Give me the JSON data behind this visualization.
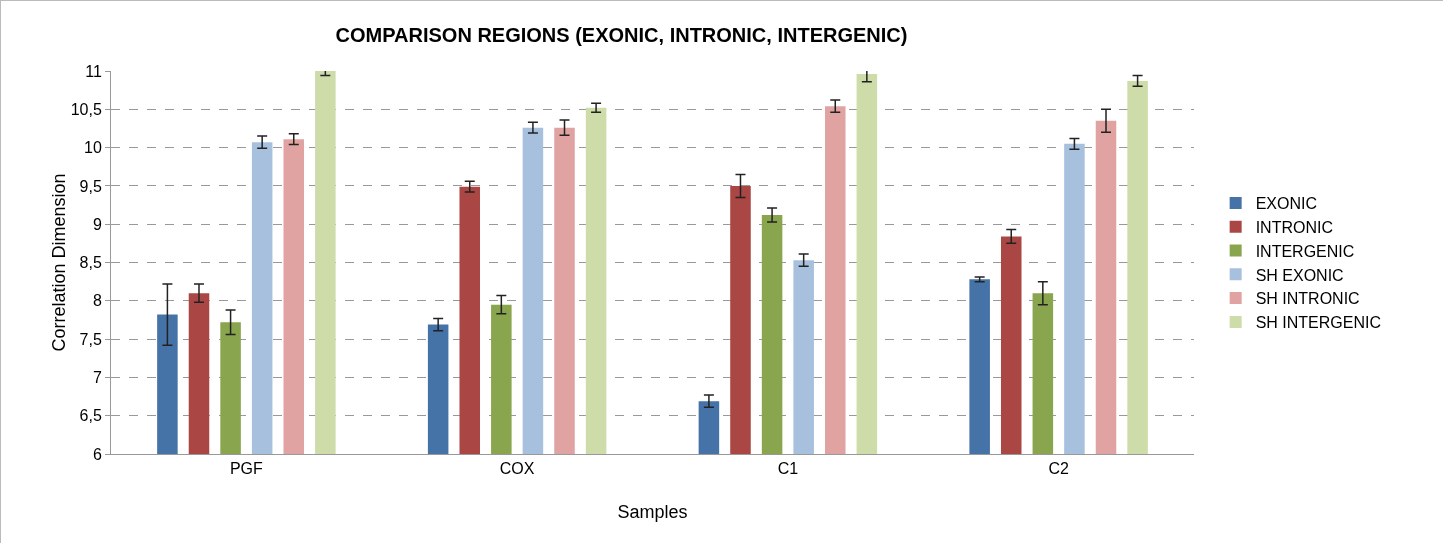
{
  "chart_data": {
    "type": "bar",
    "title": "COMPARISON REGIONS (EXONIC, INTRONIC, INTERGENIC)",
    "xlabel": "Samples",
    "ylabel": "Correlation Dimension",
    "categories": [
      "PGF",
      "COX",
      "C1",
      "C2"
    ],
    "series": [
      {
        "name": "EXONIC",
        "color": "#4572a7",
        "values": [
          7.82,
          7.69,
          6.69,
          8.28
        ],
        "errors": [
          0.4,
          0.08,
          0.08,
          0.03
        ]
      },
      {
        "name": "INTRONIC",
        "color": "#aa4643",
        "values": [
          8.1,
          9.49,
          9.5,
          8.84
        ],
        "errors": [
          0.12,
          0.07,
          0.15,
          0.09
        ]
      },
      {
        "name": "INTERGENIC",
        "color": "#89a54e",
        "values": [
          7.72,
          7.95,
          9.12,
          8.1
        ],
        "errors": [
          0.16,
          0.12,
          0.09,
          0.15
        ]
      },
      {
        "name": "SH EXONIC",
        "color": "#a7c0de",
        "values": [
          10.07,
          10.26,
          8.53,
          10.05
        ],
        "errors": [
          0.08,
          0.07,
          0.08,
          0.07
        ]
      },
      {
        "name": "SH INTRONIC",
        "color": "#e0a3a2",
        "values": [
          10.11,
          10.26,
          10.54,
          10.35
        ],
        "errors": [
          0.07,
          0.1,
          0.08,
          0.15
        ]
      },
      {
        "name": "SH INTERGENIC",
        "color": "#cddca8",
        "values": [
          11.0,
          10.52,
          10.96,
          10.87
        ],
        "errors": [
          0.06,
          0.06,
          0.1,
          0.07
        ]
      }
    ],
    "ylim": [
      6,
      11
    ],
    "yticks": [
      6,
      {
        "value": 6.5,
        "label": "6,5"
      },
      7,
      {
        "value": 7.5,
        "label": "7,5"
      },
      8,
      {
        "value": 8.5,
        "label": "8,5"
      },
      9,
      {
        "value": 9.5,
        "label": "9,5"
      },
      10,
      {
        "value": 10.5,
        "label": "10,5"
      },
      11
    ],
    "grid": "y",
    "legend": "right"
  }
}
